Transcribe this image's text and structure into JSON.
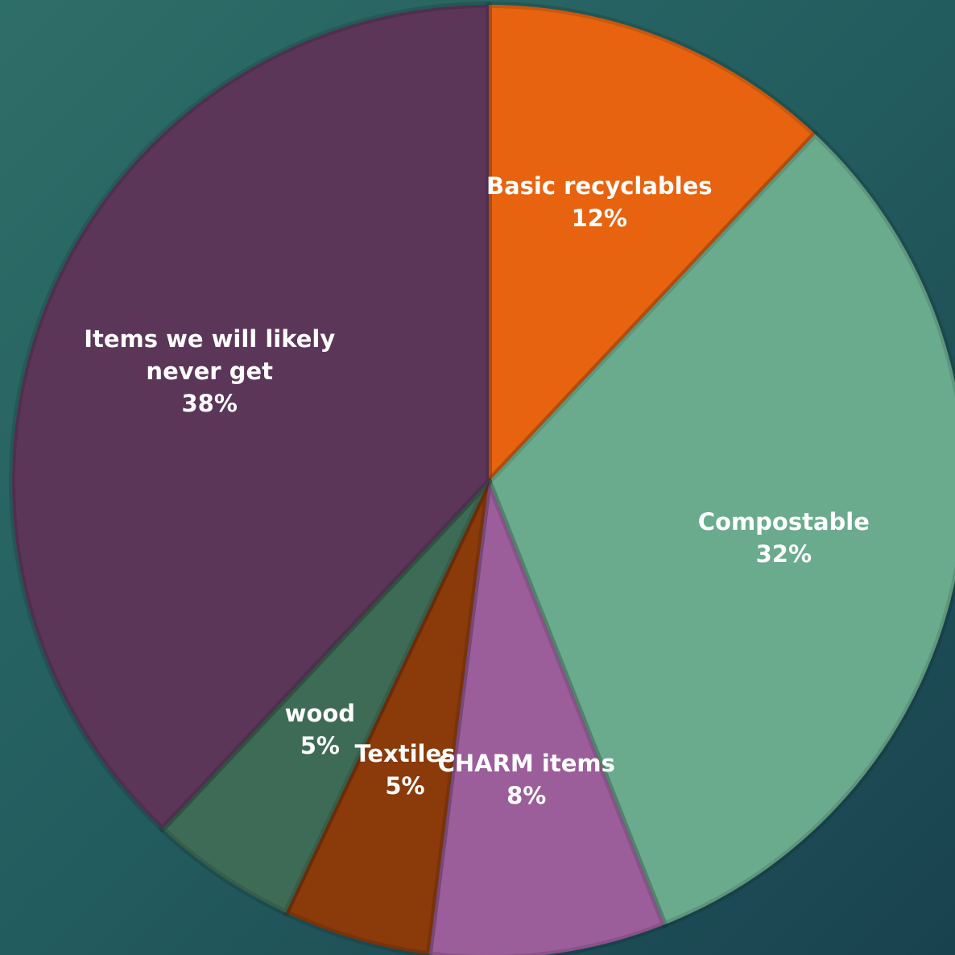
{
  "chart_data": {
    "type": "pie",
    "categories": [
      "Basic recyclables",
      "Compostable",
      "CHARM items",
      "Textiles",
      "wood",
      "Items we will likely never get"
    ],
    "values": [
      12,
      32,
      8,
      5,
      5,
      38
    ],
    "value_labels": [
      "12%",
      "32%",
      "8%",
      "5%",
      "5%",
      "38%"
    ],
    "colors": [
      "#e8630f",
      "#6aab8e",
      "#9c5e9b",
      "#8b3a0a",
      "#3e6b55",
      "#5c3659"
    ]
  }
}
